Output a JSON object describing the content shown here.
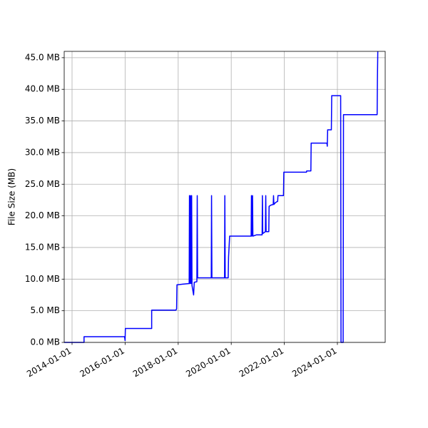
{
  "chart_data": {
    "type": "line",
    "y_label": "File Size (MB)",
    "x": [
      "2013-09-15",
      "2014-06-15",
      "2014-06-15",
      "2015-12-25",
      "2016-01-01",
      "2016-01-05",
      "2017-01-01",
      "2017-01-01",
      "2017-12-01",
      "2017-12-10",
      "2017-12-15",
      "2018-03-01",
      "2018-06-01",
      "2018-06-05",
      "2018-06-10",
      "2018-06-20",
      "2018-06-25",
      "2018-07-05",
      "2018-07-10",
      "2018-08-01",
      "2018-08-10",
      "2018-09-15",
      "2018-09-20",
      "2018-09-25",
      "2019-04-01",
      "2019-04-05",
      "2019-04-10",
      "2019-10-01",
      "2019-10-05",
      "2019-10-10",
      "2019-11-20",
      "2019-11-25",
      "2019-12-10",
      "2020-10-01",
      "2020-10-05",
      "2020-10-10",
      "2020-10-20",
      "2020-10-25",
      "2020-12-15",
      "2021-03-01",
      "2021-03-05",
      "2021-03-10",
      "2021-04-15",
      "2021-04-20",
      "2021-04-25",
      "2021-06-01",
      "2021-06-05",
      "2021-07-01",
      "2021-08-01",
      "2021-08-05",
      "2021-08-10",
      "2021-09-01",
      "2021-10-01",
      "2021-10-05",
      "2021-12-20",
      "2021-12-25",
      "2022-11-01",
      "2022-11-05",
      "2023-01-01",
      "2023-01-05",
      "2023-08-10",
      "2023-08-15",
      "2023-08-20",
      "2023-10-10",
      "2023-10-15",
      "2024-02-15",
      "2024-02-20",
      "2024-03-20",
      "2024-03-25",
      "2025-07-01",
      "2025-07-05",
      "2025-07-10"
    ],
    "series": [
      {
        "color": "#0000ff",
        "values": [
          0,
          0,
          0.9,
          0.9,
          0.3,
          2.2,
          2.2,
          5.1,
          5.1,
          5.3,
          9.1,
          9.2,
          9.3,
          23.2,
          9.3,
          23.2,
          9.3,
          23.2,
          9.0,
          7.5,
          9.5,
          9.6,
          23.2,
          10.2,
          10.2,
          23.2,
          10.2,
          10.2,
          23.2,
          10.2,
          10.2,
          13.5,
          16.8,
          16.8,
          23.2,
          16.8,
          23.2,
          16.8,
          17.0,
          17.0,
          23.2,
          17.2,
          17.5,
          23.2,
          17.5,
          17.5,
          21.5,
          21.7,
          21.8,
          23.2,
          21.8,
          22.1,
          22.3,
          23.2,
          23.2,
          26.9,
          26.9,
          27.1,
          27.1,
          31.5,
          31.5,
          31.0,
          33.6,
          33.6,
          39.0,
          39.0,
          0,
          0,
          36.0,
          36.0,
          41.5,
          46
        ]
      }
    ],
    "xlim": [
      "2013-09-15",
      "2025-10-20"
    ],
    "xticks": [
      "2014-01-01",
      "2016-01-01",
      "2018-01-01",
      "2020-01-01",
      "2022-01-01",
      "2024-01-01"
    ],
    "ylim": [
      0,
      46
    ],
    "yticks": [
      {
        "value": 0,
        "label": "0.0 MB"
      },
      {
        "value": 5,
        "label": "5.0 MB"
      },
      {
        "value": 10,
        "label": "10.0 MB"
      },
      {
        "value": 15,
        "label": "15.0 MB"
      },
      {
        "value": 20,
        "label": "20.0 MB"
      },
      {
        "value": 25,
        "label": "25.0 MB"
      },
      {
        "value": 30,
        "label": "30.0 MB"
      },
      {
        "value": 35,
        "label": "35.0 MB"
      },
      {
        "value": 40,
        "label": "40.0 MB"
      },
      {
        "value": 45,
        "label": "45.0 MB"
      }
    ],
    "grid": true
  }
}
